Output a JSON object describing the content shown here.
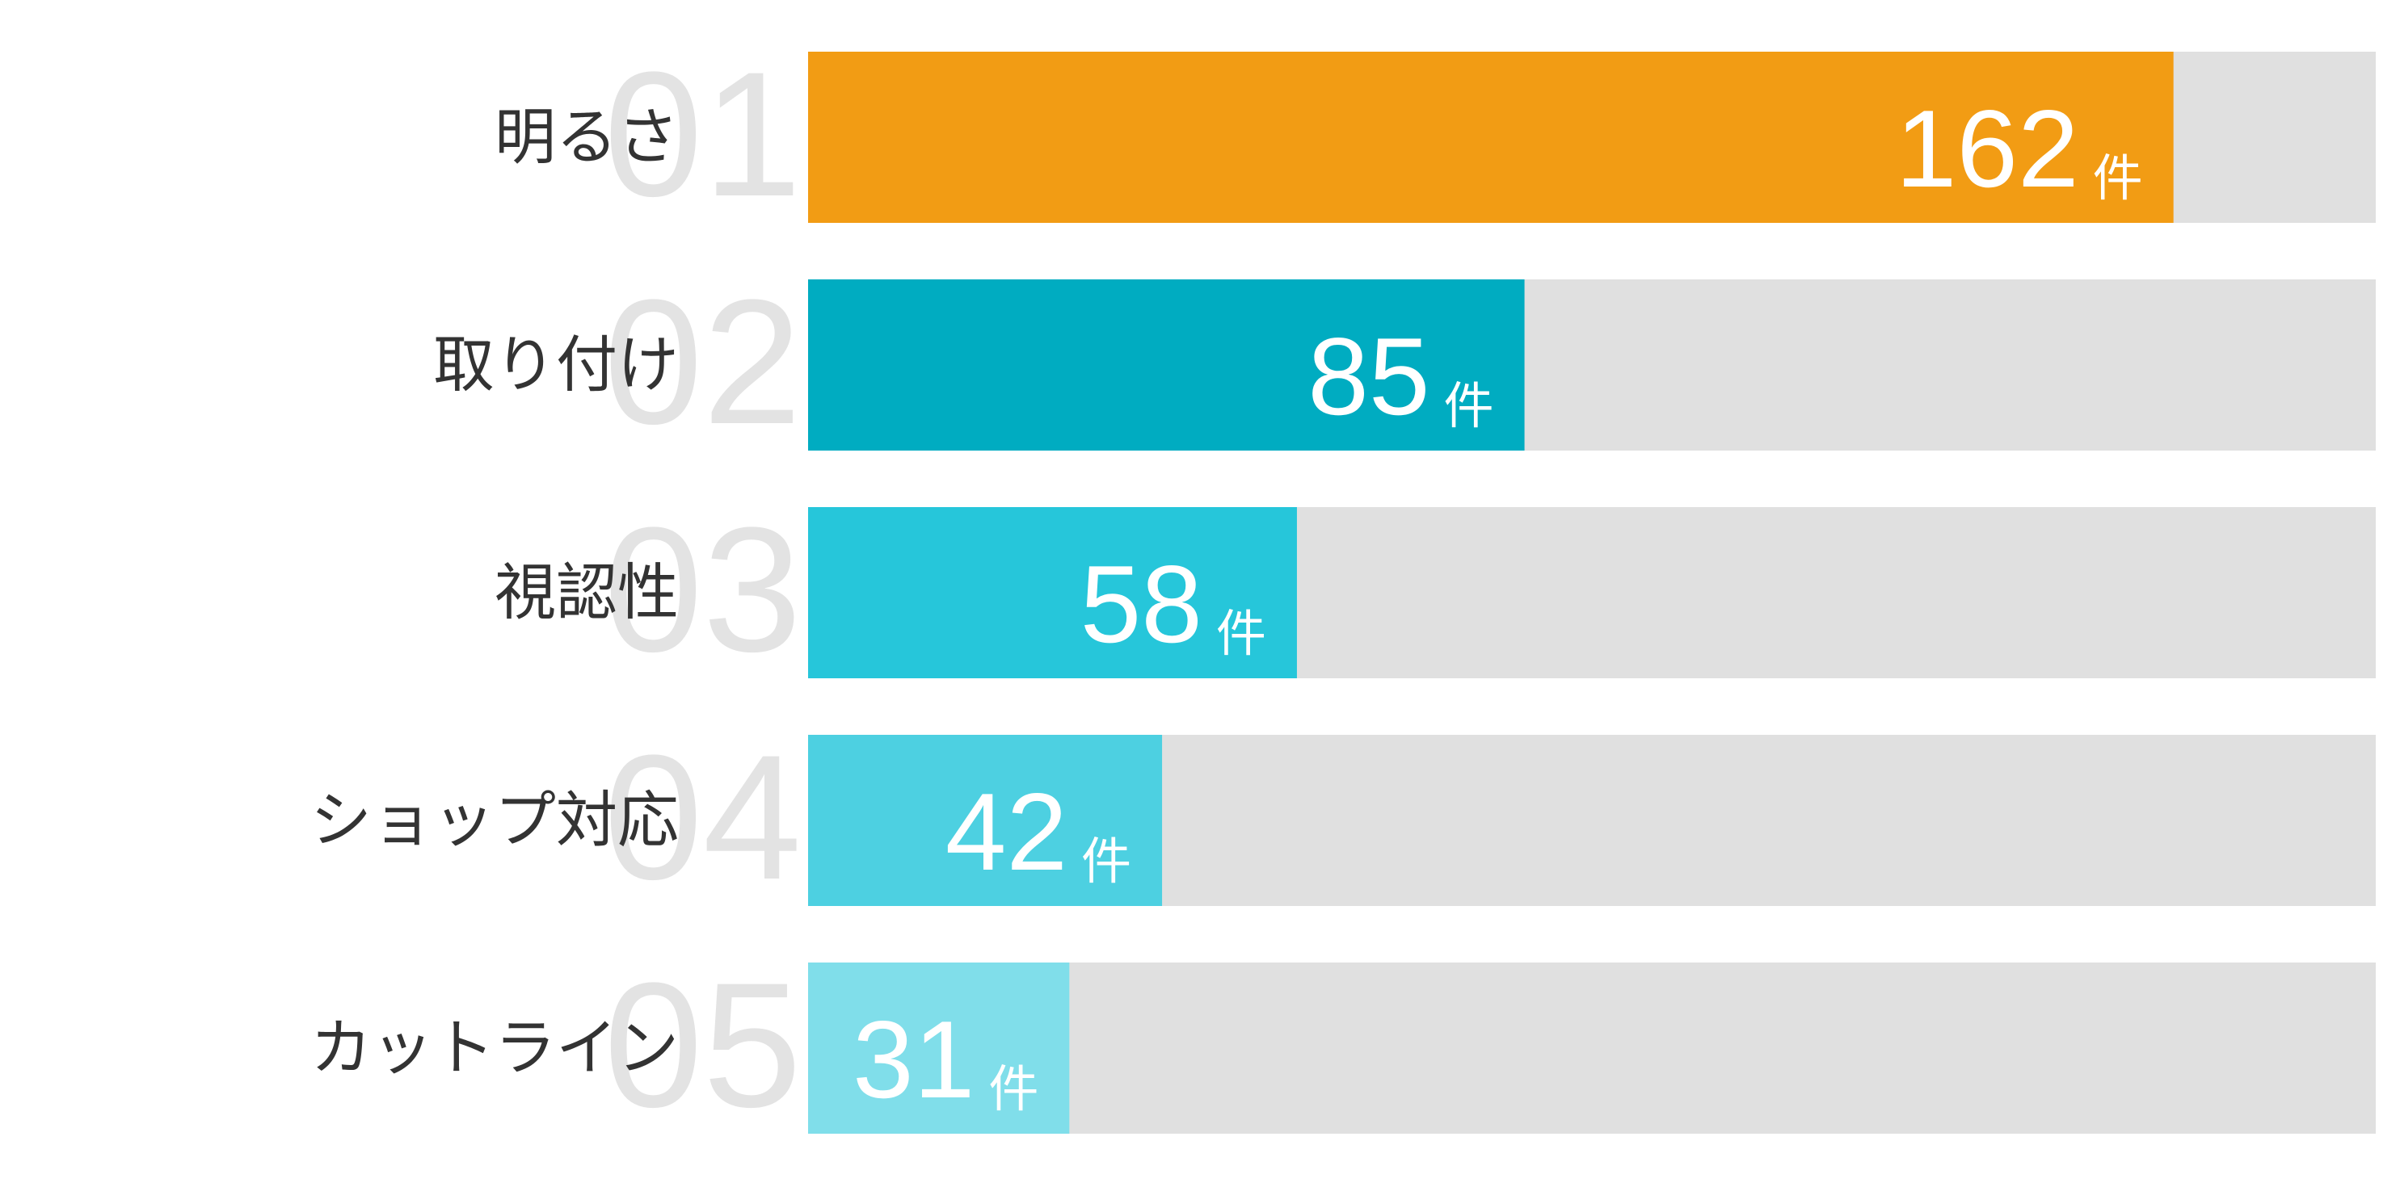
{
  "chart_data": {
    "type": "bar",
    "categories": [
      "明るさ",
      "取り付け",
      "視認性",
      "ショップ対応",
      "カットライン"
    ],
    "ranks": [
      "01",
      "02",
      "03",
      "04",
      "05"
    ],
    "values": [
      162,
      85,
      58,
      42,
      31
    ],
    "unit": "件",
    "colors": [
      "#f29c14",
      "#00acc1",
      "#26c6da",
      "#4dd0e1",
      "#80deea"
    ],
    "track_color": "#e0e0e0",
    "xlim": [
      0,
      186
    ]
  }
}
